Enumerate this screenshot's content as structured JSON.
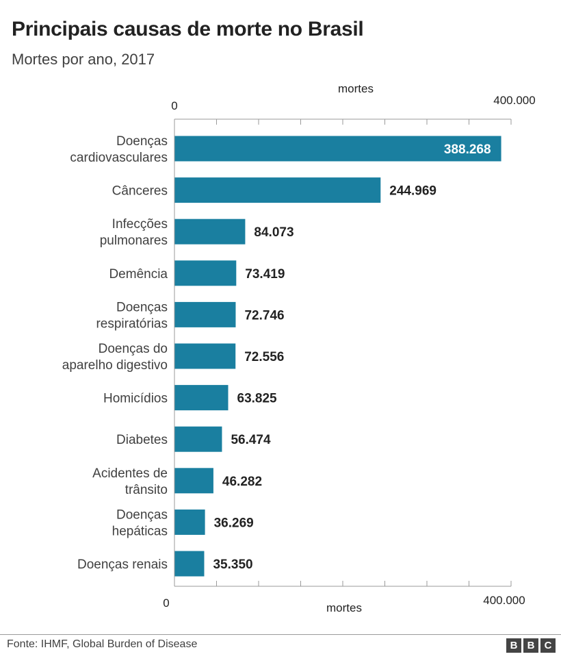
{
  "title": "Principais causas de morte no Brasil",
  "subtitle": "Mortes por ano, 2017",
  "source": "Fonte: IHMF, Global Burden of Disease",
  "logo_letters": [
    "B",
    "B",
    "C"
  ],
  "colors": {
    "bar": "#1a7fa0",
    "grid": "#c8c8c8",
    "axis": "#9a9a9a"
  },
  "chart_data": {
    "type": "bar",
    "orientation": "horizontal",
    "title": "Principais causas de morte no Brasil",
    "subtitle": "Mortes por ano, 2017",
    "xlabel": "mortes",
    "xlim": [
      0,
      400000
    ],
    "axis_tick_labels": [
      "0",
      "400.000"
    ],
    "grid": true,
    "categories": [
      [
        "Doenças",
        "cardiovasculares"
      ],
      [
        "Cânceres"
      ],
      [
        "Infecções",
        "pulmonares"
      ],
      [
        "Demência"
      ],
      [
        "Doenças",
        "respiratórias"
      ],
      [
        "Doenças do",
        "aparelho digestivo"
      ],
      [
        "Homicídios"
      ],
      [
        "Diabetes"
      ],
      [
        "Acidentes de",
        "trânsito"
      ],
      [
        "Doenças",
        "hepáticas"
      ],
      [
        "Doenças renais"
      ]
    ],
    "values": [
      388268,
      244969,
      84073,
      73419,
      72746,
      72556,
      63825,
      56474,
      46282,
      36269,
      35350
    ],
    "value_labels": [
      "388.268",
      "244.969",
      "84.073",
      "73.419",
      "72.746",
      "72.556",
      "63.825",
      "56.474",
      "46.282",
      "36.269",
      "35.350"
    ]
  }
}
